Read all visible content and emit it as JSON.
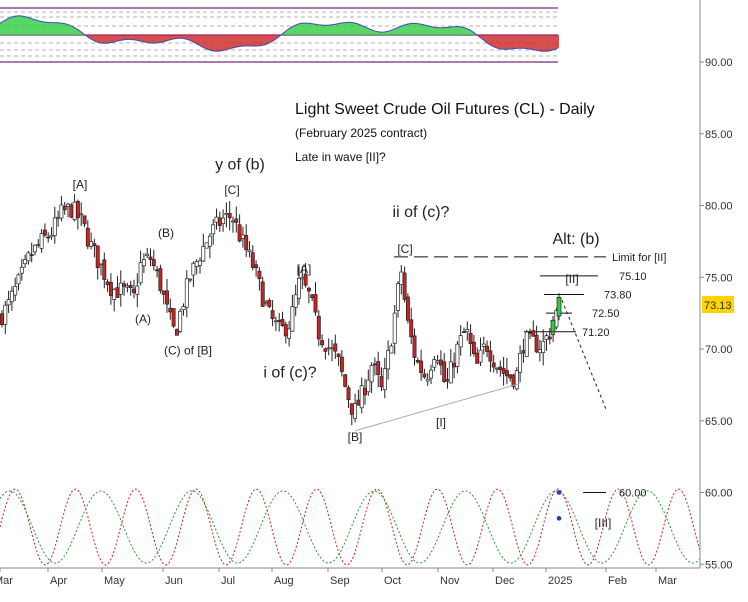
{
  "chart_data": {
    "type": "candlestick",
    "title": "Light Sweet Crude Oil Futures (CL) - Daily",
    "subtitle": "(February 2025 contract)",
    "note": "Late in wave [II]?",
    "y_axis": {
      "ticks": [
        90.0,
        85.0,
        80.0,
        75.0,
        70.0,
        65.0,
        60.0,
        55.0
      ],
      "ylim": [
        55,
        95
      ],
      "side": "right"
    },
    "x_axis": {
      "ticks": [
        "Mar",
        "Apr",
        "May",
        "Jun",
        "Jul",
        "Aug",
        "Sep",
        "Oct",
        "Nov",
        "Dec",
        "2025",
        "Feb",
        "Mar"
      ]
    },
    "current_price": "73.13",
    "price_path": [
      {
        "t": 0,
        "p": 72.2
      },
      {
        "t": 8,
        "p": 73.0
      },
      {
        "t": 20,
        "p": 74.8
      },
      {
        "t": 30,
        "p": 76.5
      },
      {
        "t": 42,
        "p": 77.5
      },
      {
        "t": 52,
        "p": 78.2
      },
      {
        "t": 62,
        "p": 79.5
      },
      {
        "t": 72,
        "p": 79.8
      },
      {
        "t": 82,
        "p": 78.8
      },
      {
        "t": 92,
        "p": 77.0
      },
      {
        "t": 102,
        "p": 75.6
      },
      {
        "t": 112,
        "p": 74.2
      },
      {
        "t": 124,
        "p": 74.0
      },
      {
        "t": 134,
        "p": 73.6
      },
      {
        "t": 140,
        "p": 75.8
      },
      {
        "t": 150,
        "p": 76.4
      },
      {
        "t": 160,
        "p": 74.6
      },
      {
        "t": 168,
        "p": 72.4
      },
      {
        "t": 175,
        "p": 71.0
      },
      {
        "t": 182,
        "p": 73.0
      },
      {
        "t": 190,
        "p": 75.0
      },
      {
        "t": 200,
        "p": 76.6
      },
      {
        "t": 210,
        "p": 78.0
      },
      {
        "t": 222,
        "p": 79.0
      },
      {
        "t": 232,
        "p": 79.3
      },
      {
        "t": 242,
        "p": 77.5
      },
      {
        "t": 252,
        "p": 76.0
      },
      {
        "t": 262,
        "p": 73.8
      },
      {
        "t": 270,
        "p": 72.2
      },
      {
        "t": 280,
        "p": 71.2
      },
      {
        "t": 290,
        "p": 71.8
      },
      {
        "t": 300,
        "p": 74.8
      },
      {
        "t": 310,
        "p": 73.6
      },
      {
        "t": 318,
        "p": 71.2
      },
      {
        "t": 328,
        "p": 70.2
      },
      {
        "t": 338,
        "p": 69.2
      },
      {
        "t": 346,
        "p": 67.2
      },
      {
        "t": 354,
        "p": 65.5
      },
      {
        "t": 362,
        "p": 66.8
      },
      {
        "t": 372,
        "p": 69.0
      },
      {
        "t": 382,
        "p": 67.0
      },
      {
        "t": 390,
        "p": 70.2
      },
      {
        "t": 396,
        "p": 73.0
      },
      {
        "t": 401,
        "p": 75.6
      },
      {
        "t": 407,
        "p": 72.0
      },
      {
        "t": 416,
        "p": 69.2
      },
      {
        "t": 426,
        "p": 68.0
      },
      {
        "t": 436,
        "p": 70.2
      },
      {
        "t": 446,
        "p": 67.2
      },
      {
        "t": 456,
        "p": 69.8
      },
      {
        "t": 466,
        "p": 71.4
      },
      {
        "t": 476,
        "p": 68.6
      },
      {
        "t": 486,
        "p": 70.4
      },
      {
        "t": 496,
        "p": 69.0
      },
      {
        "t": 506,
        "p": 68.2
      },
      {
        "t": 516,
        "p": 68.0
      },
      {
        "t": 524,
        "p": 70.6
      },
      {
        "t": 534,
        "p": 70.4
      },
      {
        "t": 542,
        "p": 70.2
      },
      {
        "t": 550,
        "p": 71.2
      },
      {
        "t": 556,
        "p": 72.4
      },
      {
        "t": 560,
        "p": 73.1
      }
    ],
    "wave_labels": [
      {
        "text": "[A]",
        "t": 80,
        "p": 81.2,
        "size": 12
      },
      {
        "text": "(B)",
        "t": 166,
        "p": 77.8,
        "size": 12
      },
      {
        "text": "(A)",
        "t": 143,
        "p": 71.8,
        "size": 12
      },
      {
        "text": "(C) of [B]",
        "t": 188,
        "p": 69.6,
        "size": 12
      },
      {
        "text": "y of (b)",
        "t": 240,
        "p": 82.5,
        "size": 16
      },
      {
        "text": "[C]",
        "t": 232,
        "p": 80.8,
        "size": 12
      },
      {
        "text": "[A]",
        "t": 304,
        "p": 75.3,
        "size": 12
      },
      {
        "text": "i of (c)?",
        "t": 290,
        "p": 68.0,
        "size": 16
      },
      {
        "text": "[B]",
        "t": 355,
        "p": 63.6,
        "size": 12
      },
      {
        "text": "ii of (c)?",
        "t": 421,
        "p": 79.2,
        "size": 16
      },
      {
        "text": "[C]",
        "t": 405,
        "p": 76.7,
        "size": 12
      },
      {
        "text": "[I]",
        "t": 441,
        "p": 64.6,
        "size": 12
      },
      {
        "text": "Alt: (b)",
        "t": 576,
        "p": 77.3,
        "size": 16
      },
      {
        "text": "[II]",
        "t": 572,
        "p": 74.6,
        "size": 12
      },
      {
        "text": "[III]",
        "t": 603,
        "p": 57.6,
        "size": 12
      }
    ],
    "levels": [
      {
        "label": "Limit for [II]",
        "value": 76.42,
        "style": "long-dash"
      },
      {
        "label": "75.10",
        "value": 75.1,
        "style": "solid"
      },
      {
        "label": "73.80",
        "value": 73.8,
        "style": "solid"
      },
      {
        "label": "72.50",
        "value": 72.5,
        "style": "solid"
      },
      {
        "label": "71.20",
        "value": 71.2,
        "style": "solid"
      },
      {
        "label": "60.00",
        "value": 60.0,
        "style": "solid"
      }
    ],
    "trendline": [
      {
        "t": 355,
        "p": 64.3
      },
      {
        "t": 520,
        "p": 67.6
      }
    ],
    "projection": [
      {
        "t": 562,
        "p": 73.4
      },
      {
        "t": 606,
        "p": 65.8
      }
    ],
    "cycle_dots": [
      {
        "t": 559,
        "p": 60.0
      },
      {
        "t": 559,
        "p": 58.2
      }
    ],
    "colors": {
      "up": "#2ecc40",
      "down": "#cc2222",
      "cycle_a": "#cc2222",
      "cycle_b": "#2a9a2a",
      "price_tag": "#ffd200",
      "frame": "#7a2a7a"
    }
  }
}
